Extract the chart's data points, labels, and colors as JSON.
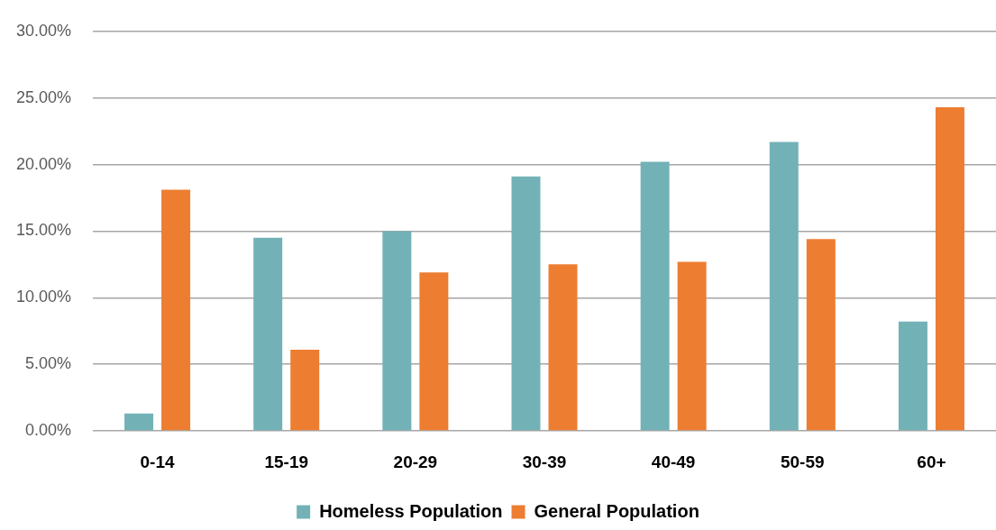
{
  "chart_data": {
    "type": "bar",
    "categories": [
      "0-14",
      "15-19",
      "20-29",
      "30-39",
      "40-49",
      "50-59",
      "60+"
    ],
    "series": [
      {
        "name": "Homeless Population",
        "color": "#72b2b7",
        "values": [
          1.3,
          14.5,
          15.0,
          19.1,
          20.2,
          21.7,
          8.2
        ]
      },
      {
        "name": "General Population",
        "color": "#ed7d31",
        "values": [
          18.1,
          6.1,
          11.9,
          12.5,
          12.7,
          14.4,
          24.3
        ]
      }
    ],
    "ylim": [
      0,
      30
    ],
    "yticks": [
      {
        "value": 0,
        "label": "0.00%"
      },
      {
        "value": 5,
        "label": "5.00%"
      },
      {
        "value": 10,
        "label": "10.00%"
      },
      {
        "value": 15,
        "label": "15.00%"
      },
      {
        "value": 20,
        "label": "20.00%"
      },
      {
        "value": 25,
        "label": "25.00%"
      },
      {
        "value": 30,
        "label": "30.00%"
      }
    ],
    "grid": "y",
    "legend": "bottom"
  }
}
